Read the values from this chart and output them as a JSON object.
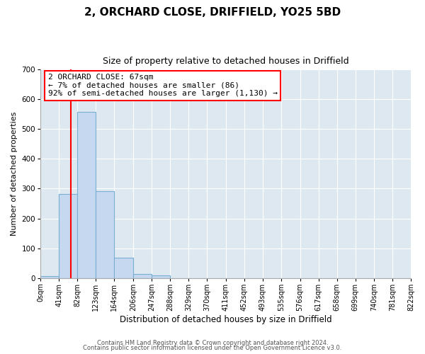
{
  "title": "2, ORCHARD CLOSE, DRIFFIELD, YO25 5BD",
  "subtitle": "Size of property relative to detached houses in Driffield",
  "xlabel": "Distribution of detached houses by size in Driffield",
  "ylabel": "Number of detached properties",
  "bin_edges": [
    0,
    41,
    82,
    123,
    164,
    206,
    247,
    288,
    329,
    370,
    411,
    452,
    493,
    535,
    576,
    617,
    658,
    699,
    740,
    781,
    822
  ],
  "bin_counts": [
    7,
    282,
    557,
    292,
    68,
    14,
    9,
    0,
    0,
    0,
    0,
    0,
    0,
    0,
    0,
    0,
    0,
    0,
    0,
    0
  ],
  "bar_color": "#c5d8f0",
  "bar_edge_color": "#7aafd4",
  "property_line_x": 67,
  "property_line_color": "red",
  "annotation_line1": "2 ORCHARD CLOSE: 67sqm",
  "annotation_line2": "← 7% of detached houses are smaller (86)",
  "annotation_line3": "92% of semi-detached houses are larger (1,130) →",
  "annotation_box_color": "white",
  "annotation_box_edge_color": "red",
  "ylim": [
    0,
    700
  ],
  "yticks": [
    0,
    100,
    200,
    300,
    400,
    500,
    600,
    700
  ],
  "tick_labels": [
    "0sqm",
    "41sqm",
    "82sqm",
    "123sqm",
    "164sqm",
    "206sqm",
    "247sqm",
    "288sqm",
    "329sqm",
    "370sqm",
    "411sqm",
    "452sqm",
    "493sqm",
    "535sqm",
    "576sqm",
    "617sqm",
    "658sqm",
    "699sqm",
    "740sqm",
    "781sqm",
    "822sqm"
  ],
  "footer_line1": "Contains HM Land Registry data © Crown copyright and database right 2024.",
  "footer_line2": "Contains public sector information licensed under the Open Government Licence v3.0.",
  "background_color": "#ffffff",
  "plot_bg_color": "#dde8f0",
  "grid_color": "#ffffff",
  "title_fontsize": 11,
  "subtitle_fontsize": 9,
  "xlabel_fontsize": 8.5,
  "ylabel_fontsize": 8,
  "tick_fontsize": 7,
  "footer_fontsize": 6,
  "annotation_fontsize": 8
}
